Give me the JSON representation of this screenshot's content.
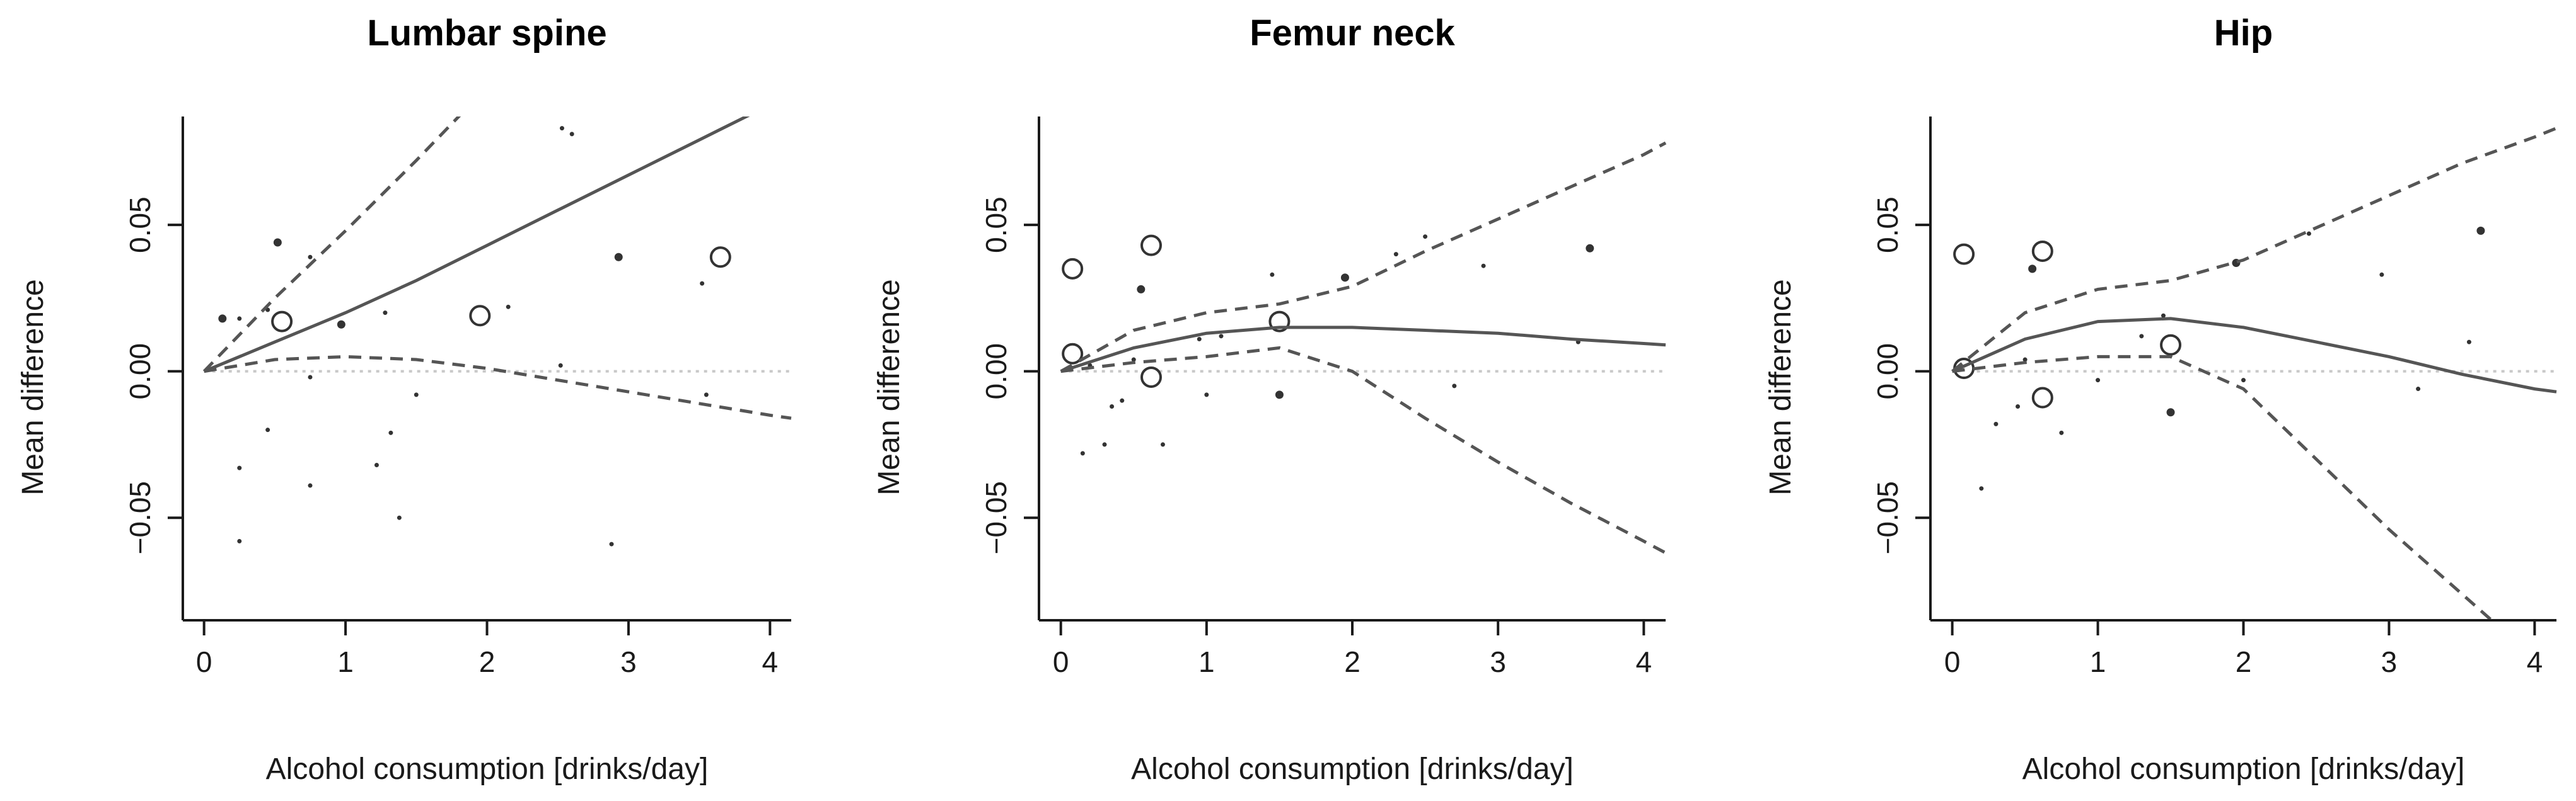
{
  "chart_data": [
    {
      "type": "line",
      "title": "Lumbar spine",
      "xlabel": "Alcohol consumption [drinks/day]",
      "ylabel": "Mean difference",
      "xlim": [
        -0.15,
        4.15
      ],
      "ylim": [
        -0.085,
        0.087
      ],
      "xticks": [
        "0",
        "1",
        "2",
        "3",
        "4"
      ],
      "yticks": [
        "−0.05",
        "0.00",
        "0.05"
      ],
      "reference_line": 0,
      "x": [
        0,
        0.5,
        1,
        1.5,
        2,
        2.5,
        3,
        3.5,
        4,
        4.15
      ],
      "series": [
        {
          "name": "",
          "style": "solid",
          "values": [
            0,
            0.01,
            0.02,
            0.031,
            0.043,
            0.055,
            0.067,
            0.079,
            0.091,
            0.095
          ]
        },
        {
          "name": "",
          "style": "dashed",
          "values": [
            0,
            0.025,
            0.048,
            0.072,
            0.097,
            null,
            null,
            null,
            null,
            null
          ]
        },
        {
          "name": "",
          "style": "dashed",
          "values": [
            0,
            0.004,
            0.005,
            0.004,
            0.001,
            -0.003,
            -0.007,
            -0.011,
            -0.015,
            -0.016
          ]
        }
      ],
      "points": [
        {
          "x": 0.55,
          "y": 0.017,
          "size": "large"
        },
        {
          "x": 1.95,
          "y": 0.019,
          "size": "large"
        },
        {
          "x": 3.65,
          "y": 0.039,
          "size": "large"
        },
        {
          "x": 0.52,
          "y": 0.044,
          "size": "medium"
        },
        {
          "x": 0.13,
          "y": 0.018,
          "size": "medium"
        },
        {
          "x": 0.97,
          "y": 0.016,
          "size": "medium"
        },
        {
          "x": 2.93,
          "y": 0.039,
          "size": "medium"
        },
        {
          "x": 2.15,
          "y": 0.022,
          "size": "small"
        },
        {
          "x": 0.25,
          "y": 0.018,
          "size": "small"
        },
        {
          "x": 0.75,
          "y": 0.039,
          "size": "small"
        },
        {
          "x": 0.45,
          "y": 0.021,
          "size": "small"
        },
        {
          "x": 1.28,
          "y": 0.02,
          "size": "small"
        },
        {
          "x": 0.25,
          "y": -0.033,
          "size": "small"
        },
        {
          "x": 0.25,
          "y": -0.058,
          "size": "small"
        },
        {
          "x": 0.45,
          "y": -0.02,
          "size": "small"
        },
        {
          "x": 0.75,
          "y": -0.039,
          "size": "small"
        },
        {
          "x": 0.75,
          "y": -0.002,
          "size": "small"
        },
        {
          "x": 1.22,
          "y": -0.032,
          "size": "small"
        },
        {
          "x": 1.38,
          "y": -0.05,
          "size": "small"
        },
        {
          "x": 1.32,
          "y": -0.021,
          "size": "small"
        },
        {
          "x": 1.5,
          "y": -0.008,
          "size": "small"
        },
        {
          "x": 2.53,
          "y": 0.083,
          "size": "small"
        },
        {
          "x": 2.6,
          "y": 0.081,
          "size": "small"
        },
        {
          "x": 2.88,
          "y": -0.059,
          "size": "small"
        },
        {
          "x": 3.52,
          "y": 0.03,
          "size": "small"
        },
        {
          "x": 3.55,
          "y": -0.008,
          "size": "small"
        },
        {
          "x": 2.52,
          "y": 0.002,
          "size": "small"
        }
      ]
    },
    {
      "type": "line",
      "title": "Femur neck",
      "xlabel": "Alcohol consumption [drinks/day]",
      "ylabel": "Mean difference",
      "xlim": [
        -0.15,
        4.15
      ],
      "ylim": [
        -0.085,
        0.087
      ],
      "xticks": [
        "0",
        "1",
        "2",
        "3",
        "4"
      ],
      "yticks": [
        "−0.05",
        "0.00",
        "0.05"
      ],
      "reference_line": 0,
      "x": [
        0,
        0.5,
        1,
        1.5,
        2,
        2.5,
        3,
        3.5,
        4,
        4.15
      ],
      "series": [
        {
          "name": "",
          "style": "solid",
          "values": [
            0,
            0.008,
            0.013,
            0.015,
            0.015,
            0.014,
            0.013,
            0.011,
            0.0095,
            0.009
          ]
        },
        {
          "name": "",
          "style": "dashed",
          "values": [
            0,
            0.014,
            0.02,
            0.023,
            0.029,
            0.041,
            0.052,
            0.063,
            0.074,
            0.078
          ]
        },
        {
          "name": "",
          "style": "dashed",
          "values": [
            0,
            0.003,
            0.005,
            0.008,
            0.0,
            -0.016,
            -0.031,
            -0.045,
            -0.058,
            -0.062
          ]
        }
      ],
      "points": [
        {
          "x": 0.08,
          "y": 0.035,
          "size": "large"
        },
        {
          "x": 0.62,
          "y": 0.043,
          "size": "large"
        },
        {
          "x": 0.08,
          "y": 0.006,
          "size": "large"
        },
        {
          "x": 1.5,
          "y": 0.017,
          "size": "large"
        },
        {
          "x": 0.62,
          "y": -0.002,
          "size": "large"
        },
        {
          "x": 0.55,
          "y": 0.028,
          "size": "medium"
        },
        {
          "x": 1.5,
          "y": -0.008,
          "size": "medium"
        },
        {
          "x": 1.95,
          "y": 0.032,
          "size": "medium"
        },
        {
          "x": 3.63,
          "y": 0.042,
          "size": "medium"
        },
        {
          "x": 0.15,
          "y": -0.028,
          "size": "small"
        },
        {
          "x": 0.3,
          "y": -0.025,
          "size": "small"
        },
        {
          "x": 0.35,
          "y": -0.012,
          "size": "small"
        },
        {
          "x": 0.42,
          "y": -0.01,
          "size": "small"
        },
        {
          "x": 0.7,
          "y": -0.025,
          "size": "small"
        },
        {
          "x": 1.0,
          "y": -0.008,
          "size": "small"
        },
        {
          "x": 0.95,
          "y": 0.011,
          "size": "small"
        },
        {
          "x": 1.1,
          "y": 0.012,
          "size": "small"
        },
        {
          "x": 1.45,
          "y": 0.033,
          "size": "small"
        },
        {
          "x": 2.3,
          "y": 0.04,
          "size": "small"
        },
        {
          "x": 2.5,
          "y": 0.046,
          "size": "small"
        },
        {
          "x": 2.9,
          "y": 0.036,
          "size": "small"
        },
        {
          "x": 2.7,
          "y": -0.005,
          "size": "small"
        },
        {
          "x": 3.55,
          "y": 0.01,
          "size": "small"
        },
        {
          "x": 0.2,
          "y": 0.002,
          "size": "small"
        },
        {
          "x": 0.5,
          "y": 0.004,
          "size": "small"
        }
      ]
    },
    {
      "type": "line",
      "title": "Hip",
      "xlabel": "Alcohol consumption [drinks/day]",
      "ylabel": "Mean difference",
      "xlim": [
        -0.15,
        4.15
      ],
      "ylim": [
        -0.085,
        0.087
      ],
      "xticks": [
        "0",
        "1",
        "2",
        "3",
        "4"
      ],
      "yticks": [
        "−0.05",
        "0.00",
        "0.05"
      ],
      "reference_line": 0,
      "x": [
        0,
        0.5,
        1,
        1.5,
        2,
        2.5,
        3,
        3.5,
        4,
        4.15
      ],
      "series": [
        {
          "name": "",
          "style": "solid",
          "values": [
            0,
            0.011,
            0.017,
            0.018,
            0.015,
            0.01,
            0.005,
            -0.001,
            -0.006,
            -0.007
          ]
        },
        {
          "name": "",
          "style": "dashed",
          "values": [
            0,
            0.02,
            0.028,
            0.031,
            0.038,
            0.049,
            0.06,
            0.071,
            0.08,
            0.083
          ]
        },
        {
          "name": "",
          "style": "dashed",
          "values": [
            0,
            0.003,
            0.005,
            0.005,
            -0.006,
            -0.03,
            -0.054,
            -0.076,
            -0.098,
            -0.104
          ]
        }
      ],
      "points": [
        {
          "x": 0.08,
          "y": 0.04,
          "size": "large"
        },
        {
          "x": 0.62,
          "y": 0.041,
          "size": "large"
        },
        {
          "x": 0.08,
          "y": 0.001,
          "size": "large"
        },
        {
          "x": 1.5,
          "y": 0.009,
          "size": "large"
        },
        {
          "x": 0.62,
          "y": -0.009,
          "size": "large"
        },
        {
          "x": 0.55,
          "y": 0.035,
          "size": "medium"
        },
        {
          "x": 1.5,
          "y": -0.014,
          "size": "medium"
        },
        {
          "x": 1.95,
          "y": 0.037,
          "size": "medium"
        },
        {
          "x": 3.63,
          "y": 0.048,
          "size": "medium"
        },
        {
          "x": 0.2,
          "y": -0.04,
          "size": "small"
        },
        {
          "x": 0.3,
          "y": -0.018,
          "size": "small"
        },
        {
          "x": 0.45,
          "y": -0.012,
          "size": "small"
        },
        {
          "x": 0.75,
          "y": -0.021,
          "size": "small"
        },
        {
          "x": 1.0,
          "y": -0.003,
          "size": "small"
        },
        {
          "x": 1.3,
          "y": 0.012,
          "size": "small"
        },
        {
          "x": 1.45,
          "y": 0.019,
          "size": "small"
        },
        {
          "x": 2.45,
          "y": 0.047,
          "size": "small"
        },
        {
          "x": 2.95,
          "y": 0.033,
          "size": "small"
        },
        {
          "x": 3.55,
          "y": 0.01,
          "size": "small"
        },
        {
          "x": 0.5,
          "y": 0.004,
          "size": "small"
        },
        {
          "x": 2.0,
          "y": -0.003,
          "size": "small"
        },
        {
          "x": 3.2,
          "y": -0.006,
          "size": "small"
        }
      ]
    }
  ]
}
